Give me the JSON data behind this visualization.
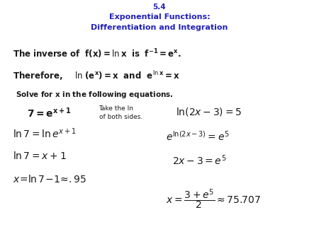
{
  "title_line1": "5.4",
  "title_line2": "Exponential Functions:",
  "title_line3": "Differentiation and Integration",
  "title_color": "#2222bb",
  "bg_color": "#ffffff",
  "body_color": "#1a1a1a",
  "figsize": [
    4.5,
    3.38
  ],
  "dpi": 100
}
